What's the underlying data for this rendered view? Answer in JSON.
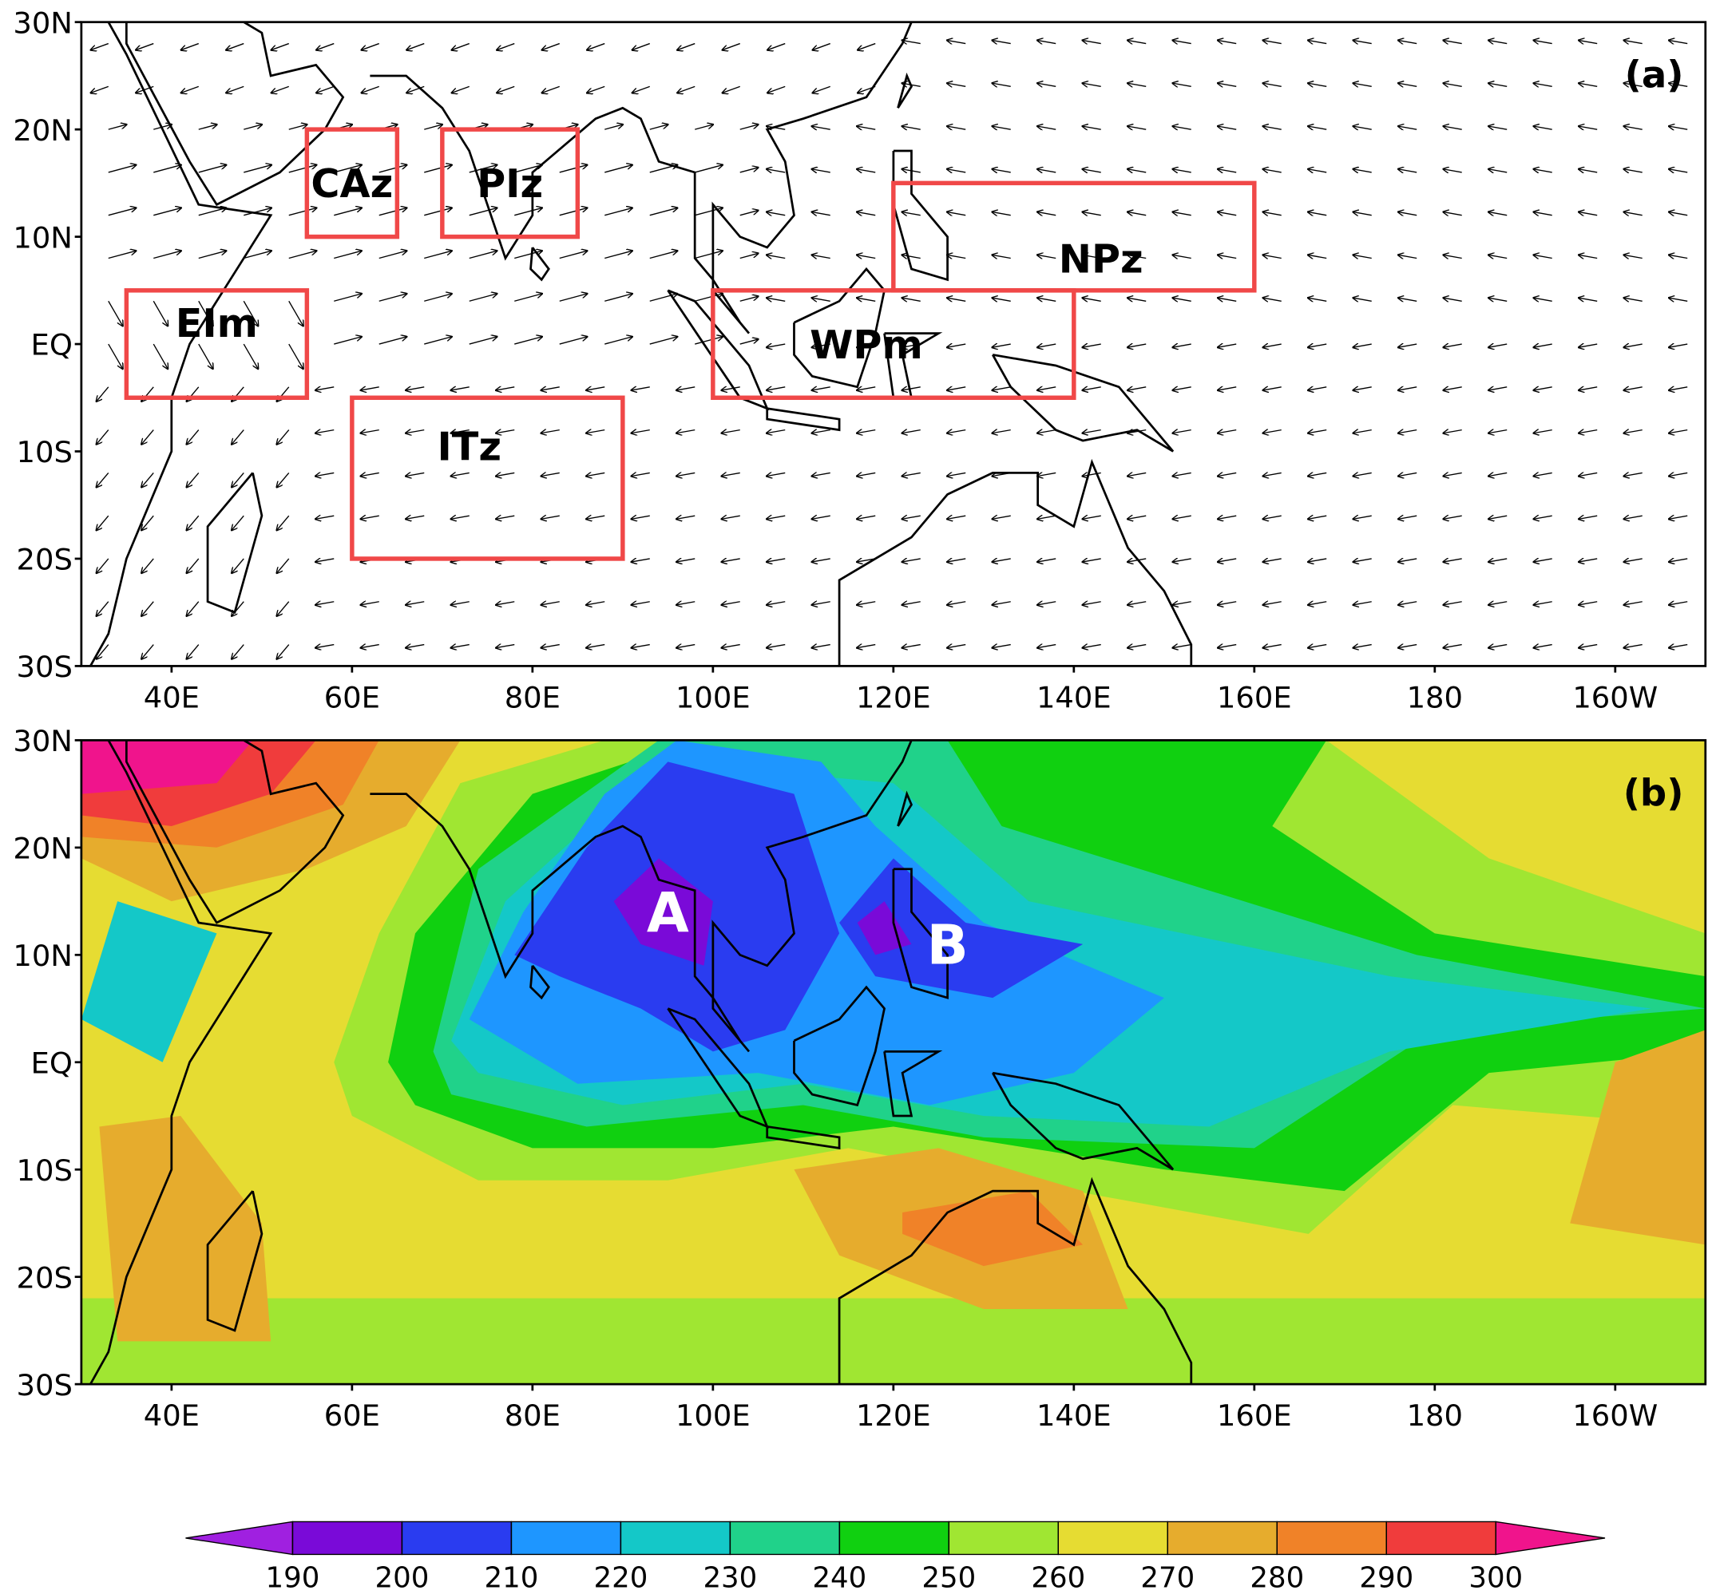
{
  "panels": [
    {
      "label": "(a)",
      "regions": [
        {
          "label": "CAz"
        },
        {
          "label": "PIz"
        },
        {
          "label": "EIm"
        },
        {
          "label": "ITz"
        },
        {
          "label": "WPm"
        },
        {
          "label": "NPz"
        }
      ]
    },
    {
      "label": "(b)",
      "annotations": [
        "A",
        "B"
      ]
    }
  ],
  "axes": {
    "lon_range": [
      30,
      210
    ],
    "lat_range": [
      -30,
      30
    ],
    "lon_ticks": [
      {
        "value": 40,
        "label": "40E"
      },
      {
        "value": 60,
        "label": "60E"
      },
      {
        "value": 80,
        "label": "80E"
      },
      {
        "value": 100,
        "label": "100E"
      },
      {
        "value": 120,
        "label": "120E"
      },
      {
        "value": 140,
        "label": "140E"
      },
      {
        "value": 160,
        "label": "160E"
      },
      {
        "value": 180,
        "label": "180"
      },
      {
        "value": 200,
        "label": "160W"
      }
    ],
    "lat_ticks": [
      {
        "value": 30,
        "label": "30N"
      },
      {
        "value": 20,
        "label": "20N"
      },
      {
        "value": 10,
        "label": "10N"
      },
      {
        "value": 0,
        "label": "EQ"
      },
      {
        "value": -10,
        "label": "10S"
      },
      {
        "value": -20,
        "label": "20S"
      },
      {
        "value": -30,
        "label": "30S"
      }
    ]
  },
  "colorbar": {
    "ticks": [
      190,
      200,
      210,
      220,
      230,
      240,
      250,
      260,
      270,
      280,
      290,
      300
    ],
    "colors": [
      "#a020e0",
      "#7a0ad8",
      "#2a3cf0",
      "#1e96ff",
      "#14c8c8",
      "#20d28a",
      "#10d010",
      "#a0e632",
      "#e6dc32",
      "#e6ac2d",
      "#f08228",
      "#f03c3c",
      "#f0148c"
    ]
  }
}
